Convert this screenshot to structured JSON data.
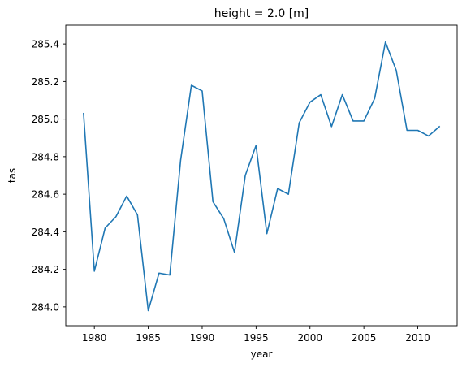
{
  "chart_data": {
    "type": "line",
    "title": "height = 2.0 [m]",
    "xlabel": "year",
    "ylabel": "tas",
    "xlim": [
      1977.35,
      2013.65
    ],
    "ylim": [
      283.9,
      285.5
    ],
    "xticks": [
      1980,
      1985,
      1990,
      1995,
      2000,
      2005,
      2010
    ],
    "yticks": [
      284.0,
      284.2,
      284.4,
      284.6,
      284.8,
      285.0,
      285.2,
      285.4
    ],
    "ytick_labels": [
      "284.0",
      "284.2",
      "284.4",
      "284.6",
      "284.8",
      "285.0",
      "285.2",
      "285.4"
    ],
    "grid": false,
    "series": [
      {
        "color": "#1f77b4",
        "x": [
          1979,
          1980,
          1981,
          1982,
          1983,
          1984,
          1985,
          1986,
          1987,
          1988,
          1989,
          1990,
          1991,
          1992,
          1993,
          1994,
          1995,
          1996,
          1997,
          1998,
          1999,
          2000,
          2001,
          2002,
          2003,
          2004,
          2005,
          2006,
          2007,
          2008,
          2009,
          2010,
          2011,
          2012
        ],
        "y": [
          285.03,
          284.19,
          284.42,
          284.48,
          284.59,
          284.49,
          283.98,
          284.18,
          284.17,
          284.78,
          285.18,
          285.15,
          284.56,
          284.47,
          284.29,
          284.7,
          284.86,
          284.39,
          284.63,
          284.6,
          284.98,
          285.09,
          285.13,
          284.96,
          285.13,
          284.99,
          284.99,
          285.11,
          285.41,
          285.26,
          284.94,
          284.94,
          284.91,
          284.96
        ]
      }
    ]
  }
}
